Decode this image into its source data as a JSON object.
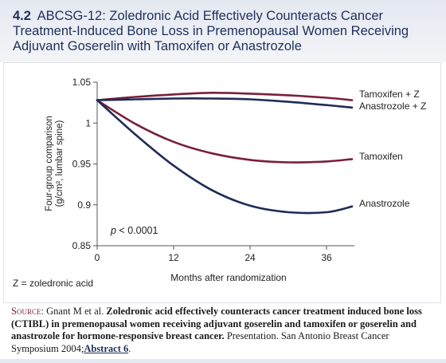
{
  "figure": {
    "number": "4.2",
    "title": "ABCSG-12: Zoledronic Acid Effectively Counteracts Cancer Treatment-Induced Bone Loss in Premenopausal Women Receiving Adjuvant Goserelin with Tamoxifen or Anastrozole"
  },
  "colors": {
    "maroon": "#7a1f3d",
    "navy": "#1e2c56"
  },
  "chart_data": {
    "type": "line",
    "title": "",
    "xlabel": "Months after randomization",
    "ylabel": "Four-group comparison (g/cm², lumbar spine)",
    "xlim": [
      0,
      40
    ],
    "ylim": [
      0.85,
      1.05
    ],
    "x_ticks": [
      0,
      12,
      24,
      36
    ],
    "y_ticks": [
      0.85,
      0.9,
      0.95,
      1,
      1.05
    ],
    "y_tick_labels": [
      "0.85",
      "0.9",
      "0.95",
      "1",
      "1.05"
    ],
    "grid": false,
    "legend_placement": "labels at right end of lines",
    "annotation": "p < 0.0001",
    "footnote_left": "Z = zoledronic acid",
    "series": [
      {
        "name": "Tamoxifen + Z",
        "color": "#7a1f3d",
        "x": [
          0,
          6,
          12,
          18,
          24,
          30,
          36,
          40
        ],
        "values": [
          1.028,
          1.032,
          1.035,
          1.037,
          1.036,
          1.034,
          1.031,
          1.028
        ]
      },
      {
        "name": "Anastrozole + Z",
        "color": "#1e2c56",
        "x": [
          0,
          6,
          12,
          18,
          24,
          30,
          36,
          40
        ],
        "values": [
          1.028,
          1.029,
          1.03,
          1.03,
          1.029,
          1.026,
          1.022,
          1.019
        ]
      },
      {
        "name": "Tamoxifen",
        "color": "#7a1f3d",
        "x": [
          0,
          6,
          12,
          18,
          24,
          30,
          36,
          40
        ],
        "values": [
          1.028,
          0.999,
          0.977,
          0.963,
          0.955,
          0.952,
          0.953,
          0.956
        ]
      },
      {
        "name": "Anastrozole",
        "color": "#1e2c56",
        "x": [
          0,
          6,
          12,
          18,
          24,
          30,
          36,
          40
        ],
        "values": [
          1.028,
          0.986,
          0.948,
          0.918,
          0.899,
          0.891,
          0.891,
          0.898
        ]
      }
    ]
  },
  "source": {
    "label": "Source:",
    "authors": "Gnant M et al.",
    "title": "Zoledronic acid effectively counteracts cancer treatment induced bone loss (CTIBL) in premenopausal women receiving adjuvant goserelin and tamoxifen or goserelin and anastrozole for hormone-responsive breast cancer.",
    "venue": "Presentation. San Antonio Breast Cancer Symposium 2004;",
    "link": "Abstract 6",
    "end": "."
  }
}
